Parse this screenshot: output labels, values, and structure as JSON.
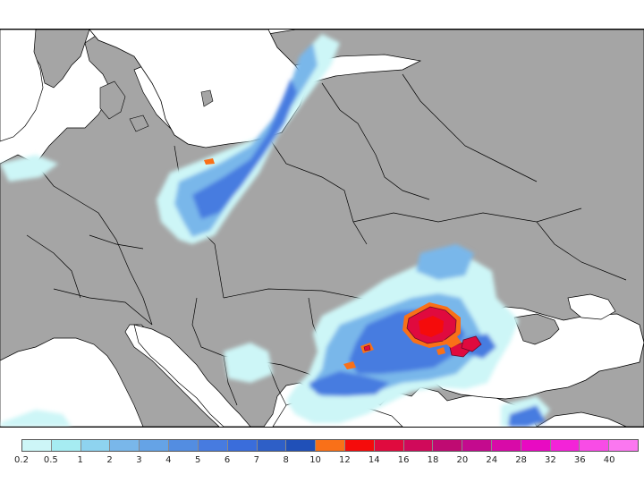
{
  "map": {
    "colors": {
      "land": "#a5a5a5",
      "sea": "#ffffff",
      "borders": "#000000"
    }
  },
  "legend": {
    "thresholds": [
      "0.2",
      "0.5",
      "1",
      "2",
      "3",
      "4",
      "5",
      "6",
      "7",
      "8",
      "10",
      "12",
      "14",
      "16",
      "18",
      "20",
      "24",
      "28",
      "32",
      "36",
      "40"
    ],
    "colors": [
      "#cdf6f7",
      "#a6ecf2",
      "#8ed3ef",
      "#79b7ea",
      "#65a3e6",
      "#538de1",
      "#477be0",
      "#3a6ddb",
      "#2e5fc7",
      "#2050b8",
      "#f97018",
      "#f50b0b",
      "#e00a3e",
      "#d0095a",
      "#bf0a72",
      "#c40a8e",
      "#d80aa8",
      "#e80ac2",
      "#f323d8",
      "#f84ce6",
      "#fb77f0"
    ]
  }
}
